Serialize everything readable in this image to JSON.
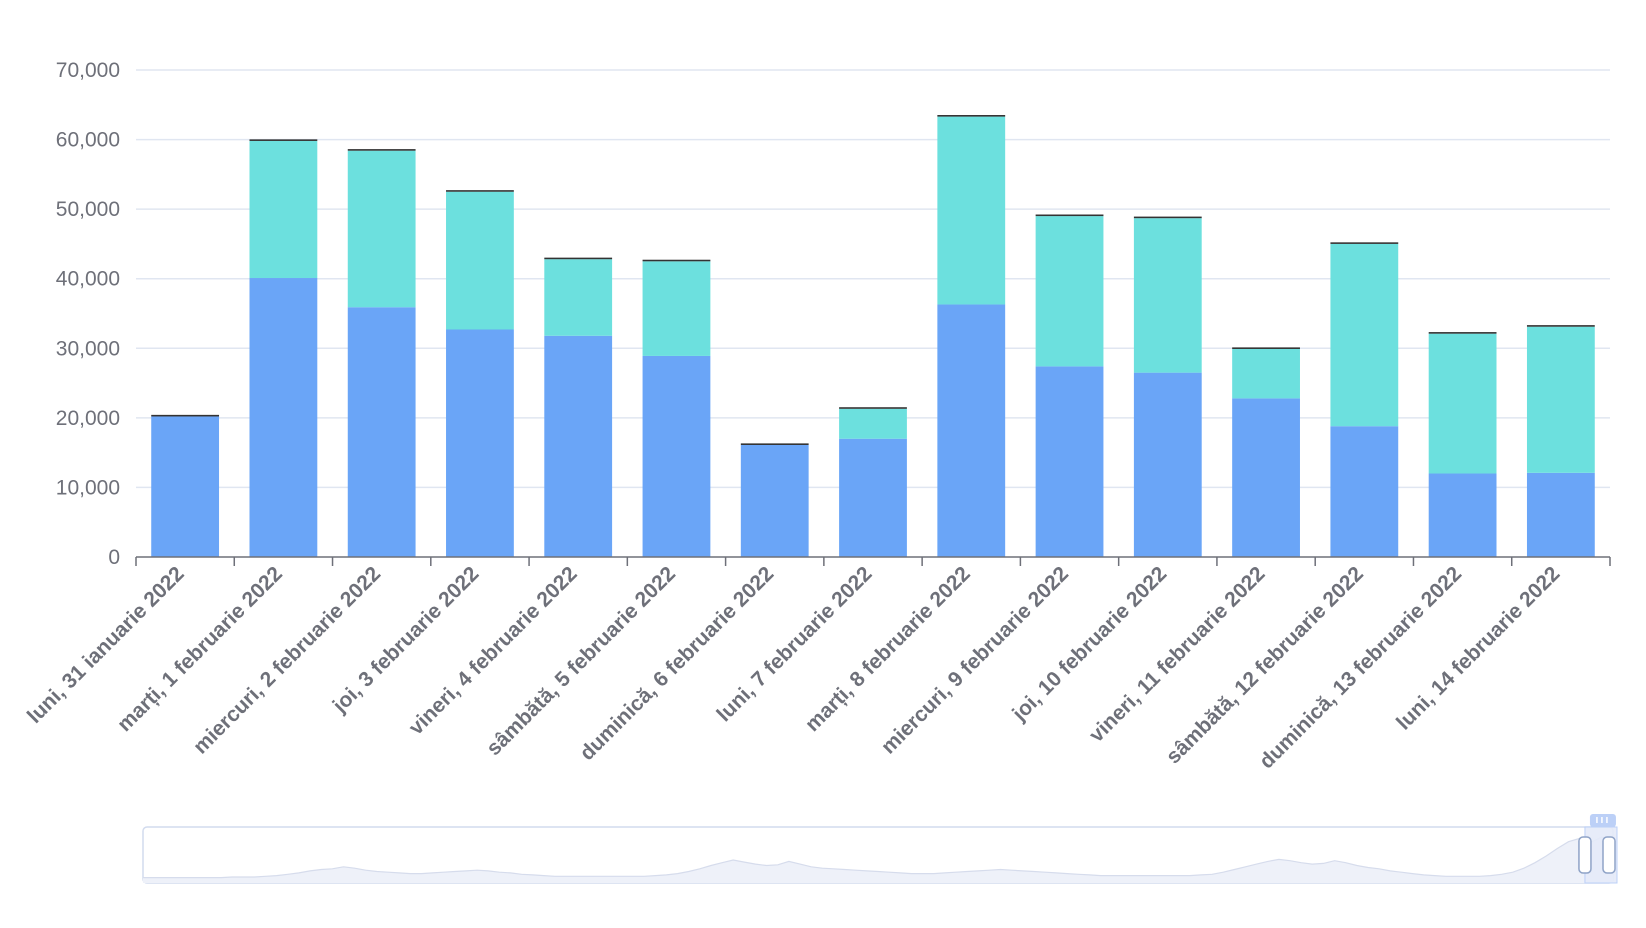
{
  "colors": {
    "series_bottom": "#6aa5f7",
    "series_top": "#6ce0de",
    "series_cap": "#333333",
    "grid": "#e0e6f1",
    "axis": "#6e7079",
    "zoom_fill": "#e4eaf8",
    "zoom_border": "#d2dbee",
    "zoom_handle": "#bcd0f7"
  },
  "chart_data": {
    "type": "bar",
    "stacked": true,
    "categories": [
      "luni, 31 ianuarie 2022",
      "marți, 1 februarie 2022",
      "miercuri, 2 februarie 2022",
      "joi, 3 februarie 2022",
      "vineri, 4 februarie 2022",
      "sâmbătă, 5 februarie 2022",
      "duminică, 6 februarie 2022",
      "luni, 7 februarie 2022",
      "marți, 8 februarie 2022",
      "miercuri, 9 februarie 2022",
      "joi, 10 februarie 2022",
      "vineri, 11 februarie 2022",
      "sâmbătă, 12 februarie 2022",
      "duminică, 13 februarie 2022",
      "luni, 14 februarie 2022"
    ],
    "series": [
      {
        "values": [
          20200,
          40100,
          35900,
          32700,
          31800,
          28900,
          16100,
          17000,
          36300,
          27400,
          26500,
          22800,
          18800,
          12000,
          12100
        ]
      },
      {
        "values": [
          0,
          19700,
          22500,
          19800,
          11000,
          13600,
          0,
          4300,
          27000,
          21600,
          22200,
          7100,
          26200,
          20100,
          21000
        ]
      },
      {
        "values": [
          100,
          100,
          150,
          150,
          150,
          150,
          150,
          150,
          200,
          150,
          150,
          150,
          150,
          150,
          150
        ]
      }
    ],
    "yticks": [
      "0",
      "10,000",
      "20,000",
      "30,000",
      "40,000",
      "50,000",
      "60,000",
      "70,000"
    ],
    "ylim": [
      0,
      70000
    ],
    "grid": true,
    "legend": "none",
    "datazoom": {
      "range_percent": [
        98.5,
        100
      ],
      "overview_values": [
        2,
        2,
        2,
        2,
        2,
        2,
        2,
        2,
        3,
        3,
        3,
        4,
        5,
        7,
        9,
        12,
        14,
        15,
        18,
        16,
        13,
        11,
        10,
        9,
        8,
        8,
        9,
        10,
        11,
        12,
        13,
        12,
        10,
        9,
        7,
        6,
        5,
        4,
        4,
        4,
        4,
        4,
        4,
        4,
        4,
        4,
        5,
        6,
        8,
        11,
        15,
        20,
        24,
        28,
        25,
        22,
        20,
        21,
        26,
        22,
        18,
        16,
        15,
        14,
        13,
        12,
        11,
        10,
        9,
        8,
        8,
        8,
        9,
        10,
        11,
        12,
        13,
        14,
        13,
        12,
        11,
        10,
        9,
        8,
        7,
        6,
        5,
        5,
        5,
        5,
        5,
        5,
        5,
        5,
        5,
        6,
        7,
        10,
        14,
        18,
        22,
        26,
        29,
        27,
        24,
        22,
        23,
        27,
        24,
        20,
        17,
        15,
        12,
        10,
        8,
        6,
        5,
        4,
        4,
        4,
        4,
        5,
        7,
        10,
        16,
        24,
        34,
        45,
        55,
        60,
        54,
        62,
        48
      ]
    }
  }
}
